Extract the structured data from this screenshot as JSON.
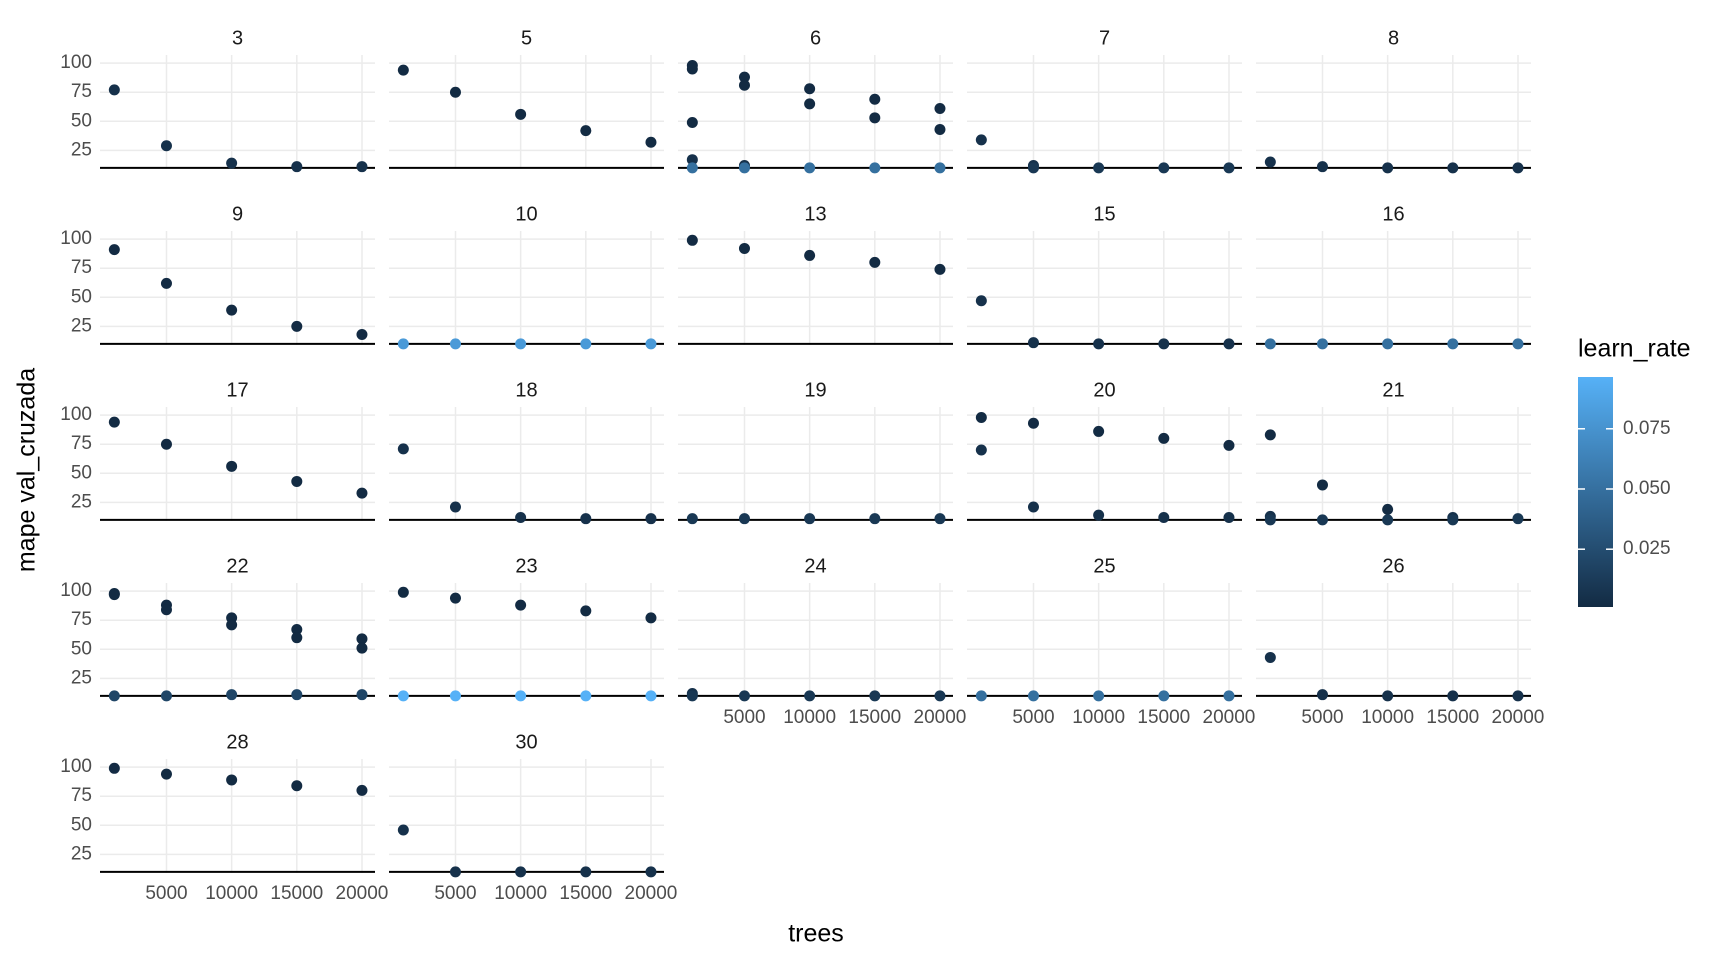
{
  "chart_data": {
    "type": "scatter",
    "xlabel": "trees",
    "ylabel": "mape val_cruzada",
    "xlim": [
      -100,
      21000
    ],
    "ylim": [
      9,
      107
    ],
    "xticks": [
      5000,
      10000,
      15000,
      20000
    ],
    "yticks": [
      25,
      50,
      75,
      100
    ],
    "grid": true,
    "hline": 10,
    "color_legend": {
      "title": "learn_rate",
      "lim": [
        0.001,
        0.0965
      ],
      "colors": [
        "#132b43",
        "#56b1f7"
      ],
      "ticks": [
        0.025,
        {
          "value": 0.05,
          "label": "0.050"
        },
        0.075
      ],
      "position": "right"
    },
    "panels": [
      {
        "title": "3",
        "x": [
          1000,
          5000,
          10000,
          15000,
          20000
        ],
        "y": [
          77,
          29,
          14,
          11,
          11
        ],
        "learn_rate": [
          0.005,
          0.005,
          0.005,
          0.005,
          0.005
        ]
      },
      {
        "title": "5",
        "x": [
          1000,
          5000,
          10000,
          15000,
          20000
        ],
        "y": [
          94,
          75,
          56,
          42,
          32
        ],
        "learn_rate": [
          0.001,
          0.001,
          0.001,
          0.001,
          0.001
        ]
      },
      {
        "title": "6",
        "x": [
          1000,
          1000,
          1000,
          1000,
          1000,
          5000,
          5000,
          5000,
          5000,
          10000,
          10000,
          10000,
          15000,
          15000,
          15000,
          20000,
          20000,
          20000
        ],
        "y": [
          98,
          95,
          49,
          17,
          10,
          88,
          81,
          12,
          10,
          78,
          65,
          10,
          69,
          53,
          10,
          61,
          43,
          10
        ],
        "learn_rate": [
          0.001,
          0.001,
          0.001,
          0.005,
          0.05,
          0.001,
          0.001,
          0.005,
          0.05,
          0.001,
          0.001,
          0.05,
          0.001,
          0.001,
          0.05,
          0.001,
          0.001,
          0.05
        ]
      },
      {
        "title": "7",
        "x": [
          1000,
          5000,
          5000,
          10000,
          15000,
          20000
        ],
        "y": [
          34,
          12,
          10,
          10,
          10,
          10
        ],
        "learn_rate": [
          0.005,
          0.005,
          0.01,
          0.01,
          0.01,
          0.01
        ]
      },
      {
        "title": "8",
        "x": [
          1000,
          5000,
          10000,
          15000,
          20000
        ],
        "y": [
          15,
          11,
          10,
          10,
          10
        ],
        "learn_rate": [
          0.005,
          0.005,
          0.005,
          0.005,
          0.005
        ]
      },
      {
        "title": "9",
        "x": [
          1000,
          5000,
          10000,
          15000,
          20000
        ],
        "y": [
          91,
          62,
          39,
          25,
          18
        ],
        "learn_rate": [
          0.001,
          0.001,
          0.001,
          0.001,
          0.001
        ]
      },
      {
        "title": "10",
        "x": [
          1000,
          5000,
          10000,
          15000,
          20000
        ],
        "y": [
          10,
          10,
          10,
          10,
          10
        ],
        "learn_rate": [
          0.08,
          0.08,
          0.08,
          0.08,
          0.08
        ]
      },
      {
        "title": "13",
        "x": [
          1000,
          5000,
          10000,
          15000,
          20000
        ],
        "y": [
          99,
          92,
          86,
          80,
          74
        ],
        "learn_rate": [
          0.001,
          0.001,
          0.001,
          0.001,
          0.001
        ]
      },
      {
        "title": "15",
        "x": [
          1000,
          5000,
          10000,
          15000,
          20000
        ],
        "y": [
          47,
          11,
          10,
          10,
          10
        ],
        "learn_rate": [
          0.005,
          0.005,
          0.005,
          0.005,
          0.005
        ]
      },
      {
        "title": "16",
        "x": [
          1000,
          5000,
          10000,
          15000,
          20000
        ],
        "y": [
          10,
          10,
          10,
          10,
          10
        ],
        "learn_rate": [
          0.05,
          0.05,
          0.05,
          0.05,
          0.05
        ]
      },
      {
        "title": "17",
        "x": [
          1000,
          5000,
          10000,
          15000,
          20000
        ],
        "y": [
          94,
          75,
          56,
          43,
          33
        ],
        "learn_rate": [
          0.001,
          0.001,
          0.001,
          0.001,
          0.001
        ]
      },
      {
        "title": "18",
        "x": [
          1000,
          5000,
          10000,
          15000,
          20000
        ],
        "y": [
          71,
          21,
          12,
          11,
          11
        ],
        "learn_rate": [
          0.005,
          0.005,
          0.005,
          0.005,
          0.005
        ]
      },
      {
        "title": "19",
        "x": [
          1000,
          5000,
          10000,
          15000,
          20000
        ],
        "y": [
          11,
          11,
          11,
          11,
          11
        ],
        "learn_rate": [
          0.01,
          0.01,
          0.01,
          0.01,
          0.01
        ]
      },
      {
        "title": "20",
        "x": [
          1000,
          1000,
          5000,
          5000,
          10000,
          10000,
          15000,
          15000,
          20000,
          20000
        ],
        "y": [
          98,
          70,
          93,
          21,
          86,
          14,
          80,
          12,
          74,
          12
        ],
        "learn_rate": [
          0.001,
          0.005,
          0.001,
          0.005,
          0.001,
          0.005,
          0.001,
          0.005,
          0.001,
          0.005
        ]
      },
      {
        "title": "21",
        "x": [
          1000,
          1000,
          1000,
          5000,
          5000,
          10000,
          10000,
          15000,
          15000,
          20000
        ],
        "y": [
          83,
          13,
          10,
          40,
          10,
          19,
          10,
          12,
          10,
          11
        ],
        "learn_rate": [
          0.001,
          0.005,
          0.01,
          0.001,
          0.01,
          0.001,
          0.01,
          0.005,
          0.01,
          0.01
        ]
      },
      {
        "title": "22",
        "x": [
          1000,
          1000,
          1000,
          5000,
          5000,
          5000,
          10000,
          10000,
          10000,
          15000,
          15000,
          15000,
          20000,
          20000,
          20000
        ],
        "y": [
          98,
          97,
          10,
          88,
          84,
          10,
          77,
          71,
          11,
          67,
          60,
          11,
          59,
          51,
          11
        ],
        "learn_rate": [
          0.001,
          0.001,
          0.02,
          0.001,
          0.001,
          0.02,
          0.001,
          0.001,
          0.02,
          0.001,
          0.001,
          0.02,
          0.001,
          0.001,
          0.02
        ]
      },
      {
        "title": "23",
        "x": [
          1000,
          5000,
          10000,
          15000,
          20000,
          1000,
          5000,
          10000,
          15000,
          20000
        ],
        "y": [
          99,
          94,
          88,
          83,
          77,
          10,
          10,
          10,
          10,
          10
        ],
        "learn_rate": [
          0.001,
          0.001,
          0.001,
          0.001,
          0.001,
          0.0965,
          0.0965,
          0.0965,
          0.0965,
          0.0965
        ]
      },
      {
        "title": "24",
        "x": [
          1000,
          1000,
          5000,
          10000,
          15000,
          20000
        ],
        "y": [
          12,
          10,
          10,
          10,
          10,
          10
        ],
        "learn_rate": [
          0.005,
          0.01,
          0.01,
          0.01,
          0.01,
          0.01
        ]
      },
      {
        "title": "25",
        "x": [
          1000,
          5000,
          10000,
          15000,
          20000
        ],
        "y": [
          10,
          10,
          10,
          10,
          10
        ],
        "learn_rate": [
          0.05,
          0.05,
          0.05,
          0.05,
          0.05
        ]
      },
      {
        "title": "26",
        "x": [
          1000,
          5000,
          10000,
          15000,
          20000
        ],
        "y": [
          43,
          11,
          10,
          10,
          10
        ],
        "learn_rate": [
          0.005,
          0.005,
          0.005,
          0.005,
          0.005
        ]
      },
      {
        "title": "28",
        "x": [
          1000,
          5000,
          10000,
          15000,
          20000
        ],
        "y": [
          99,
          94,
          89,
          84,
          80
        ],
        "learn_rate": [
          0.001,
          0.001,
          0.001,
          0.001,
          0.001
        ]
      },
      {
        "title": "30",
        "x": [
          1000,
          5000,
          10000,
          15000,
          20000
        ],
        "y": [
          46,
          10,
          10,
          10,
          10
        ],
        "learn_rate": [
          0.005,
          0.005,
          0.005,
          0.005,
          0.005
        ]
      }
    ]
  }
}
